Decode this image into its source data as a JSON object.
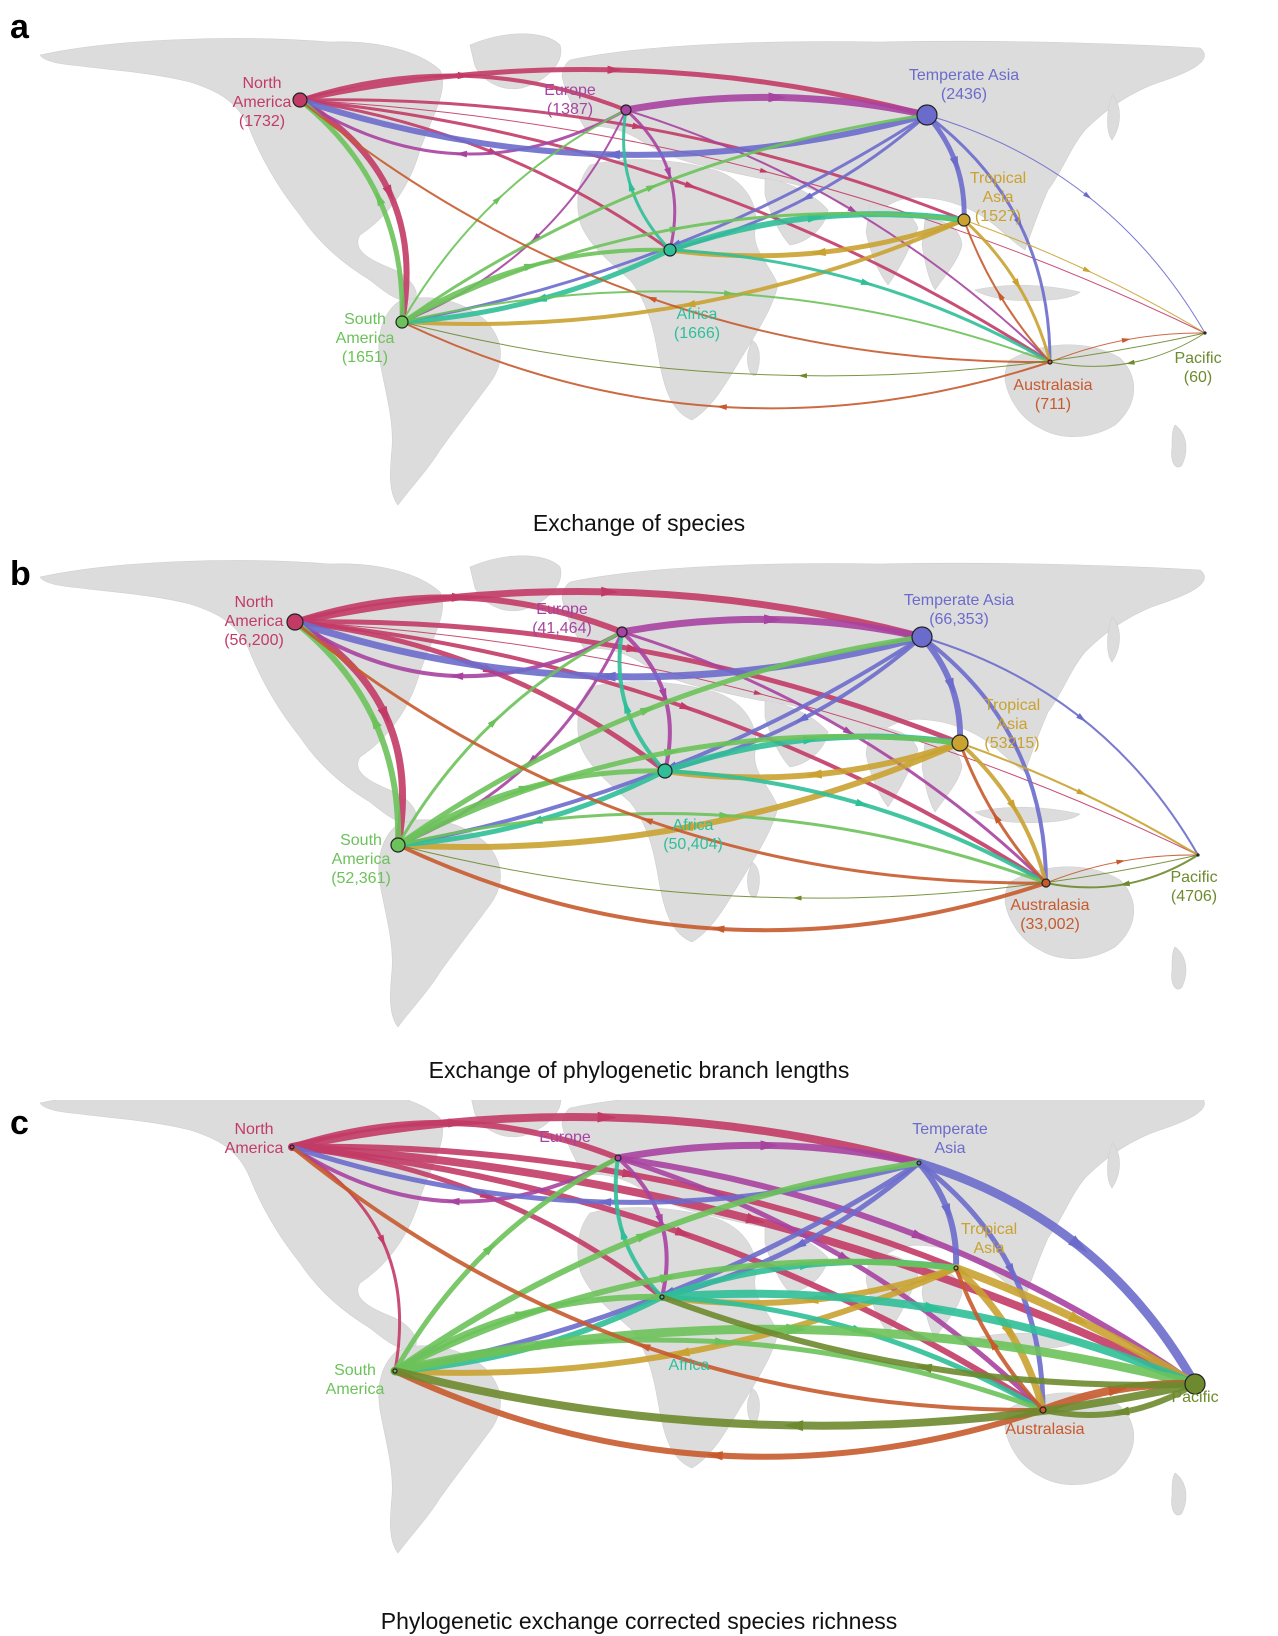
{
  "panels": [
    {
      "letter": "a",
      "caption": "Exchange of species",
      "nodes": [
        {
          "key": "na",
          "name1": "North",
          "name2": "America",
          "count": "(1732)"
        },
        {
          "key": "eu",
          "name1": "Europe",
          "name2": "",
          "count": "(1387)"
        },
        {
          "key": "ta",
          "name1": "Temperate Asia",
          "name2": "",
          "count": "(2436)"
        },
        {
          "key": "tr",
          "name1": "Tropical",
          "name2": "Asia",
          "count": "(1527)"
        },
        {
          "key": "af",
          "name1": "Africa",
          "name2": "",
          "count": "(1666)"
        },
        {
          "key": "sa",
          "name1": "South",
          "name2": "America",
          "count": "(1651)"
        },
        {
          "key": "au",
          "name1": "Australasia",
          "name2": "",
          "count": "(711)"
        },
        {
          "key": "pa",
          "name1": "Pacific",
          "name2": "",
          "count": "(60)"
        }
      ]
    },
    {
      "letter": "b",
      "caption": "Exchange of phylogenetic branch lengths",
      "nodes": [
        {
          "key": "na",
          "name1": "North",
          "name2": "America",
          "count": "(56,200)"
        },
        {
          "key": "eu",
          "name1": "Europe",
          "name2": "",
          "count": "(41,464)"
        },
        {
          "key": "ta",
          "name1": "Temperate Asia",
          "name2": "",
          "count": "(66,353)"
        },
        {
          "key": "tr",
          "name1": "Tropical",
          "name2": "Asia",
          "count": "(53215)"
        },
        {
          "key": "af",
          "name1": "Africa",
          "name2": "",
          "count": "(50,404)"
        },
        {
          "key": "sa",
          "name1": "South",
          "name2": "America",
          "count": "(52,361)"
        },
        {
          "key": "au",
          "name1": "Australasia",
          "name2": "",
          "count": "(33,002)"
        },
        {
          "key": "pa",
          "name1": "Pacific",
          "name2": "",
          "count": "(4706)"
        }
      ]
    },
    {
      "letter": "c",
      "caption": "Phylogenetic exchange corrected species richness",
      "nodes": [
        {
          "key": "na",
          "name1": "North",
          "name2": "America",
          "count": ""
        },
        {
          "key": "eu",
          "name1": "Europe",
          "name2": "",
          "count": ""
        },
        {
          "key": "ta",
          "name1": "Temperate",
          "name2": "Asia",
          "count": ""
        },
        {
          "key": "tr",
          "name1": "Tropical",
          "name2": "Asia",
          "count": ""
        },
        {
          "key": "af",
          "name1": "Africa",
          "name2": "",
          "count": ""
        },
        {
          "key": "sa",
          "name1": "South",
          "name2": "America",
          "count": ""
        },
        {
          "key": "au",
          "name1": "Australasia",
          "name2": "",
          "count": ""
        },
        {
          "key": "pa",
          "name1": "Pacific",
          "name2": "",
          "count": ""
        }
      ]
    }
  ],
  "region_colors": {
    "na": "#c23b66",
    "eu": "#a743a0",
    "ta": "#6b6bcc",
    "tr": "#c9a230",
    "af": "#2fbf98",
    "sa": "#6cc25a",
    "au": "#c65a2e",
    "pa": "#6d8a2e"
  },
  "map_color": "#dcdcdc"
}
